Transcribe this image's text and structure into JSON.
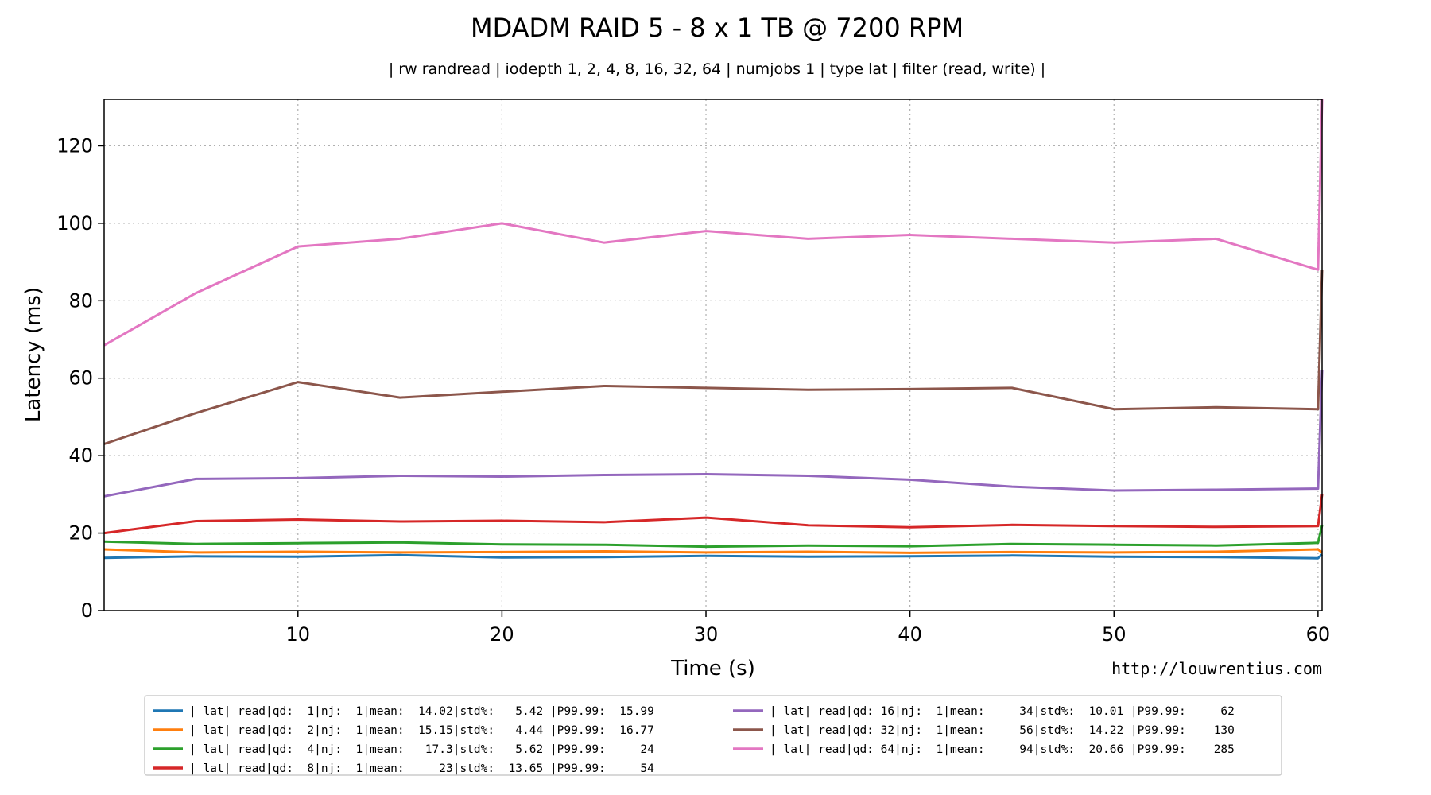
{
  "chart_data": {
    "type": "line",
    "title": "MDADM RAID 5 - 8 x 1 TB @ 7200 RPM",
    "subtitle": "| rw randread | iodepth 1, 2, 4, 8, 16, 32, 64 | numjobs 1 | type lat | filter (read, write) |",
    "xlabel": "Time (s)",
    "ylabel": "Latency (ms)",
    "watermark": "http://louwrentius.com",
    "xlim": [
      0.5,
      60.2
    ],
    "ylim": [
      0,
      132
    ],
    "xticks": [
      10,
      20,
      30,
      40,
      50,
      60
    ],
    "yticks": [
      0,
      20,
      40,
      60,
      80,
      100,
      120
    ],
    "grid": true,
    "legend_position": "bottom",
    "series": [
      {
        "name": "qd1",
        "legend": "| lat| read|qd:  1|nj:  1|mean:  14.02|std%:   5.42 |P99.99:  15.99",
        "color": "#1f77b4",
        "x": [
          0.5,
          5,
          10,
          15,
          20,
          25,
          30,
          35,
          40,
          45,
          50,
          55,
          60,
          60.2
        ],
        "values": [
          13.6,
          14.0,
          13.9,
          14.3,
          13.7,
          13.8,
          14.1,
          13.9,
          14.0,
          14.2,
          13.9,
          13.8,
          13.5,
          14.5
        ]
      },
      {
        "name": "qd2",
        "legend": "| lat| read|qd:  2|nj:  1|mean:  15.15|std%:   4.44 |P99.99:  16.77",
        "color": "#ff7f0e",
        "x": [
          0.5,
          5,
          10,
          15,
          20,
          25,
          30,
          35,
          40,
          45,
          50,
          55,
          60,
          60.2
        ],
        "values": [
          15.8,
          15.0,
          15.2,
          15.0,
          15.1,
          15.3,
          15.0,
          15.2,
          14.9,
          15.1,
          15.0,
          15.2,
          15.8,
          15.0
        ]
      },
      {
        "name": "qd4",
        "legend": "| lat| read|qd:  4|nj:  1|mean:   17.3|std%:   5.62 |P99.99:     24",
        "color": "#2ca02c",
        "x": [
          0.5,
          5,
          10,
          15,
          20,
          25,
          30,
          35,
          40,
          45,
          50,
          55,
          60,
          60.2
        ],
        "values": [
          17.8,
          17.2,
          17.4,
          17.6,
          17.1,
          17.0,
          16.5,
          16.8,
          16.6,
          17.2,
          17.0,
          16.8,
          17.5,
          22.0
        ]
      },
      {
        "name": "qd8",
        "legend": "| lat| read|qd:  8|nj:  1|mean:     23|std%:  13.65 |P99.99:     54",
        "color": "#d62728",
        "x": [
          0.5,
          5,
          10,
          15,
          20,
          25,
          30,
          35,
          40,
          45,
          50,
          55,
          60,
          60.2
        ],
        "values": [
          20.0,
          23.1,
          23.5,
          23.0,
          23.2,
          22.8,
          24.0,
          22.0,
          21.5,
          22.1,
          21.8,
          21.6,
          21.8,
          30.0
        ]
      },
      {
        "name": "qd16",
        "legend": "| lat| read|qd: 16|nj:  1|mean:     34|std%:  10.01 |P99.99:     62",
        "color": "#9467bd",
        "x": [
          0.5,
          5,
          10,
          15,
          20,
          25,
          30,
          35,
          40,
          45,
          50,
          55,
          60,
          60.2
        ],
        "values": [
          29.5,
          34.0,
          34.2,
          34.8,
          34.6,
          35.0,
          35.2,
          34.8,
          33.8,
          32.0,
          31.0,
          31.2,
          31.5,
          62.0
        ]
      },
      {
        "name": "qd32",
        "legend": "| lat| read|qd: 32|nj:  1|mean:     56|std%:  14.22 |P99.99:    130",
        "color": "#8c564b",
        "x": [
          0.5,
          5,
          10,
          15,
          20,
          25,
          30,
          35,
          40,
          45,
          50,
          55,
          60,
          60.2
        ],
        "values": [
          43.0,
          51.0,
          59.0,
          55.0,
          56.5,
          58.0,
          57.5,
          57.0,
          57.2,
          57.5,
          52.0,
          52.5,
          52.0,
          88.0
        ]
      },
      {
        "name": "qd64",
        "legend": "| lat| read|qd: 64|nj:  1|mean:     94|std%:  20.66 |P99.99:    285",
        "color": "#e377c2",
        "x": [
          0.5,
          5,
          10,
          15,
          20,
          25,
          30,
          35,
          40,
          45,
          50,
          55,
          60,
          60.2
        ],
        "values": [
          68.5,
          82.0,
          94.0,
          96.0,
          100.0,
          95.0,
          98.0,
          96.0,
          97.0,
          96.0,
          95.0,
          96.0,
          88.0,
          132.0
        ]
      }
    ]
  }
}
